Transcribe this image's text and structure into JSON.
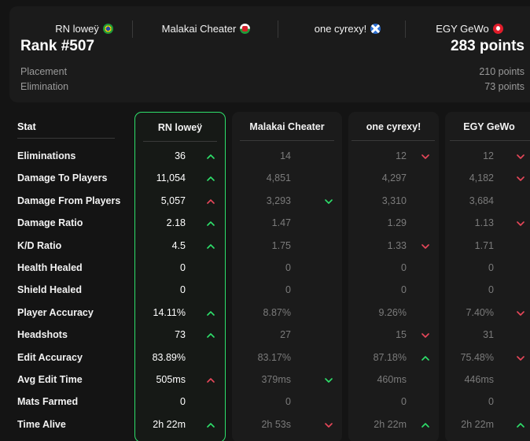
{
  "summary": {
    "players": [
      {
        "name": "RN loweÿ",
        "flag": "brazil-flag-icon"
      },
      {
        "name": "Malakai Cheater",
        "flag": "wales-flag-icon"
      },
      {
        "name": "one cyrexy!",
        "flag": "scotland-flag-icon"
      },
      {
        "name": "EGY GeWo",
        "flag": "turkey-flag-icon"
      }
    ],
    "rank": "Rank #507",
    "points": "283 points",
    "breakdown": [
      {
        "label": "Placement",
        "value": "210 points"
      },
      {
        "label": "Elimination",
        "value": "73 points"
      }
    ]
  },
  "table": {
    "stat_header": "Stat",
    "columns": [
      "RN loweÿ",
      "Malakai Cheater",
      "one cyrexy!",
      "EGY GeWo"
    ],
    "rows": [
      {
        "label": "Eliminations",
        "values": [
          "36",
          "14",
          "12",
          "12"
        ],
        "arrows": [
          "up",
          "",
          "down",
          "down"
        ]
      },
      {
        "label": "Damage To Players",
        "values": [
          "11,054",
          "4,851",
          "4,297",
          "4,182"
        ],
        "arrows": [
          "up",
          "",
          "",
          "down"
        ]
      },
      {
        "label": "Damage From Players",
        "values": [
          "5,057",
          "3,293",
          "3,310",
          "3,684"
        ],
        "arrows": [
          "up-red",
          "down-green",
          "",
          ""
        ]
      },
      {
        "label": "Damage Ratio",
        "values": [
          "2.18",
          "1.47",
          "1.29",
          "1.13"
        ],
        "arrows": [
          "up",
          "",
          "",
          "down"
        ]
      },
      {
        "label": "K/D Ratio",
        "values": [
          "4.5",
          "1.75",
          "1.33",
          "1.71"
        ],
        "arrows": [
          "up",
          "",
          "down",
          ""
        ]
      },
      {
        "label": "Health Healed",
        "values": [
          "0",
          "0",
          "0",
          "0"
        ],
        "arrows": [
          "",
          "",
          "",
          ""
        ]
      },
      {
        "label": "Shield Healed",
        "values": [
          "0",
          "0",
          "0",
          "0"
        ],
        "arrows": [
          "",
          "",
          "",
          ""
        ]
      },
      {
        "label": "Player Accuracy",
        "values": [
          "14.11%",
          "8.87%",
          "9.26%",
          "7.40%"
        ],
        "arrows": [
          "up",
          "",
          "",
          "down"
        ]
      },
      {
        "label": "Headshots",
        "values": [
          "73",
          "27",
          "15",
          "31"
        ],
        "arrows": [
          "up",
          "",
          "down",
          ""
        ]
      },
      {
        "label": "Edit Accuracy",
        "values": [
          "83.89%",
          "83.17%",
          "87.18%",
          "75.48%"
        ],
        "arrows": [
          "",
          "",
          "up",
          "down"
        ]
      },
      {
        "label": "Avg Edit Time",
        "values": [
          "505ms",
          "379ms",
          "460ms",
          "446ms"
        ],
        "arrows": [
          "up-red",
          "down-green",
          "",
          ""
        ]
      },
      {
        "label": "Mats Farmed",
        "values": [
          "0",
          "0",
          "0",
          "0"
        ],
        "arrows": [
          "",
          "",
          "",
          ""
        ]
      },
      {
        "label": "Time Alive",
        "values": [
          "2h 22m",
          "2h 53s",
          "2h 22m",
          "2h 22m"
        ],
        "arrows": [
          "up",
          "down",
          "up",
          "up"
        ]
      }
    ]
  },
  "colors": {
    "accent_green": "#2ee06b",
    "down_red": "#e8475a",
    "background": "#141414",
    "card": "#1b1b1b"
  }
}
